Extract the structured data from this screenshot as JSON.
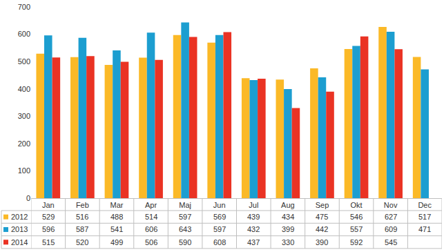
{
  "chart_data": {
    "type": "bar",
    "categories": [
      "Jan",
      "Feb",
      "Mar",
      "Apr",
      "Maj",
      "Jun",
      "Jul",
      "Aug",
      "Sep",
      "Okt",
      "Nov",
      "Dec"
    ],
    "series": [
      {
        "name": "2012",
        "color": "#fbb927",
        "values": [
          529,
          516,
          488,
          514,
          597,
          569,
          439,
          434,
          475,
          546,
          627,
          517
        ]
      },
      {
        "name": "2013",
        "color": "#1c9ed0",
        "values": [
          596,
          587,
          541,
          606,
          643,
          597,
          432,
          399,
          442,
          557,
          609,
          471
        ]
      },
      {
        "name": "2014",
        "color": "#ea3324",
        "values": [
          515,
          520,
          499,
          506,
          590,
          608,
          437,
          330,
          390,
          592,
          545,
          null
        ]
      }
    ],
    "ylim": [
      0,
      700
    ],
    "yticks": [
      0,
      100,
      200,
      300,
      400,
      500,
      600,
      700
    ],
    "grid": false,
    "legend": "bottom"
  }
}
